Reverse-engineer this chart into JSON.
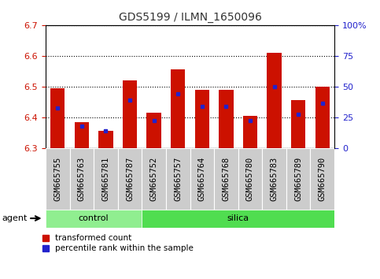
{
  "title": "GDS5199 / ILMN_1650096",
  "samples": [
    "GSM665755",
    "GSM665763",
    "GSM665781",
    "GSM665787",
    "GSM665752",
    "GSM665757",
    "GSM665764",
    "GSM665768",
    "GSM665780",
    "GSM665783",
    "GSM665789",
    "GSM665790"
  ],
  "red_values": [
    6.495,
    6.385,
    6.355,
    6.52,
    6.415,
    6.555,
    6.49,
    6.49,
    6.405,
    6.61,
    6.455,
    6.5
  ],
  "blue_values": [
    6.43,
    6.37,
    6.355,
    6.455,
    6.39,
    6.475,
    6.435,
    6.435,
    6.39,
    6.5,
    6.41,
    6.445
  ],
  "ymin": 6.3,
  "ymax": 6.7,
  "yticks": [
    6.3,
    6.4,
    6.5,
    6.6,
    6.7
  ],
  "y2min": 0,
  "y2max": 100,
  "y2ticks": [
    0,
    25,
    50,
    75,
    100
  ],
  "y2ticklabels": [
    "0",
    "25",
    "50",
    "75",
    "100%"
  ],
  "bar_color": "#cc1100",
  "dot_color": "#2222cc",
  "bar_width": 0.6,
  "n_control": 4,
  "control_color": "#90ee90",
  "silica_color": "#50dd50",
  "agent_label": "agent",
  "control_label": "control",
  "silica_label": "silica",
  "legend_red": "transformed count",
  "legend_blue": "percentile rank within the sample",
  "title_color": "#333333",
  "left_axis_color": "#cc1100",
  "right_axis_color": "#2222cc",
  "grid_color": "#000000",
  "label_bg_color": "#cccccc",
  "label_fontsize": 7.5
}
